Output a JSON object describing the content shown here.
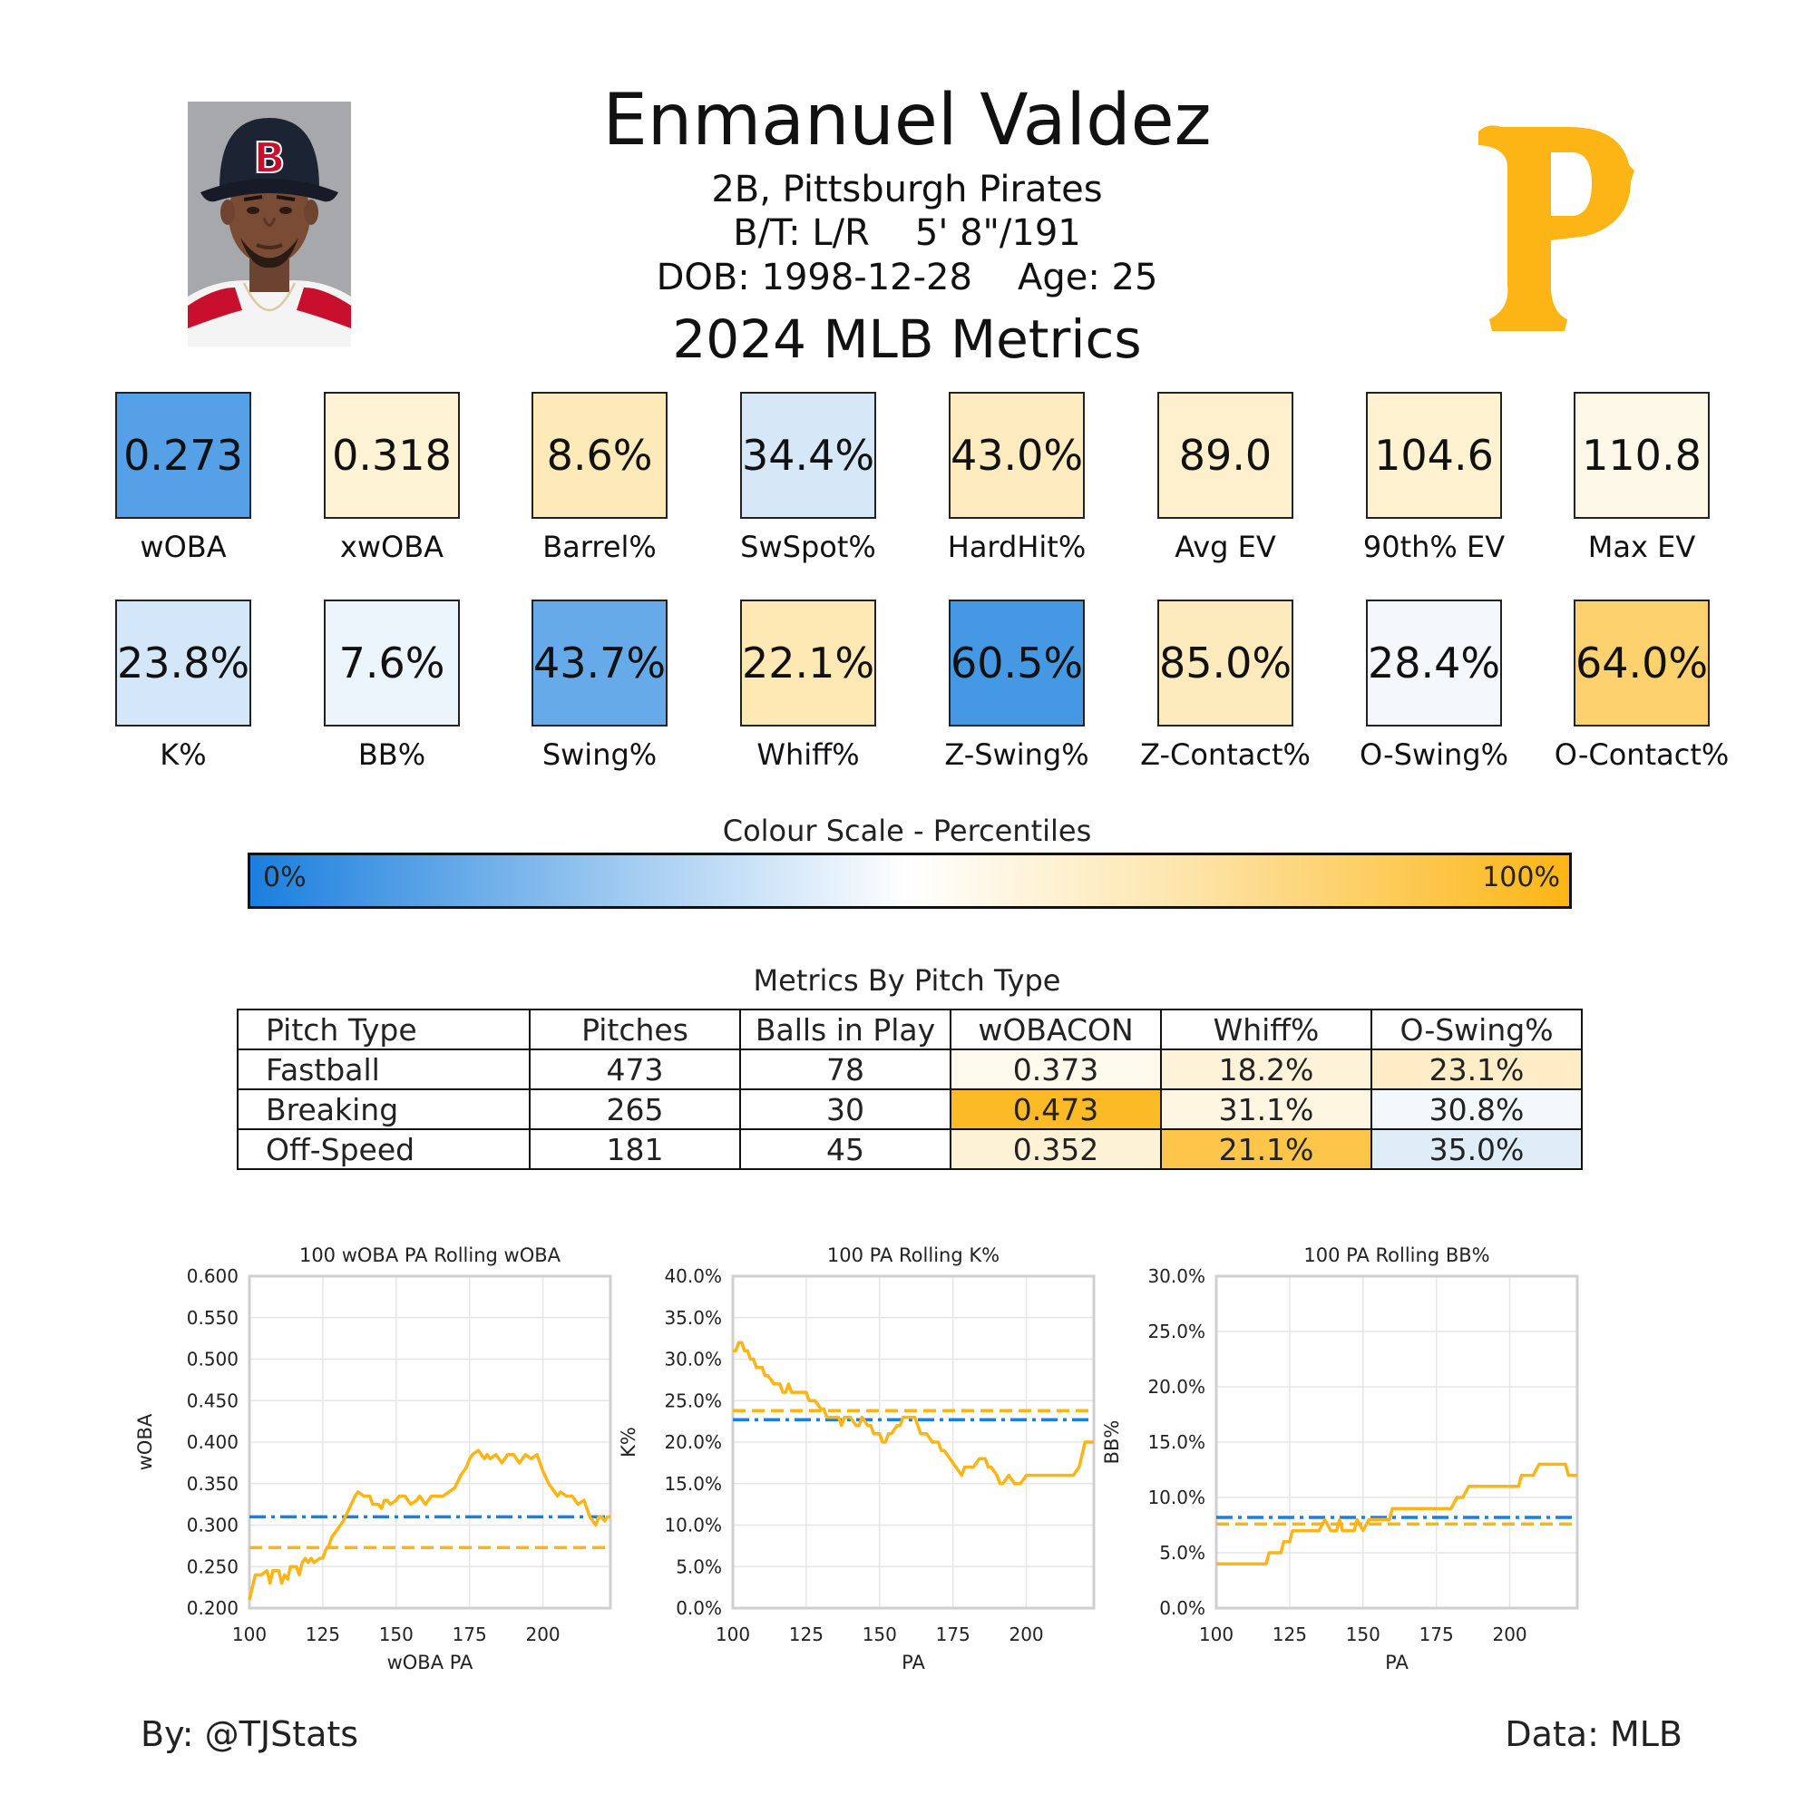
{
  "header": {
    "player_name": "Enmanuel Valdez",
    "position_team": "2B, Pittsburgh Pirates",
    "bats_throws": "B/T: L/R",
    "height_weight": "5' 8\"/191",
    "dob": "DOB: 1998-12-28",
    "age": "Age: 25",
    "season_title": "2024 MLB Metrics",
    "logo_letter": "P",
    "cap_letter": "B"
  },
  "metrics_row1": [
    {
      "label": "wOBA",
      "value": "0.273",
      "color": "#55a0e6"
    },
    {
      "label": "xwOBA",
      "value": "0.318",
      "color": "#fef3d4"
    },
    {
      "label": "Barrel%",
      "value": "8.6%",
      "color": "#fee9b8"
    },
    {
      "label": "SwSpot%",
      "value": "34.4%",
      "color": "#d6e8f8"
    },
    {
      "label": "HardHit%",
      "value": "43.0%",
      "color": "#feecc0"
    },
    {
      "label": "Avg EV",
      "value": "89.0",
      "color": "#fef0cc"
    },
    {
      "label": "90th% EV",
      "value": "104.6",
      "color": "#fef2d0"
    },
    {
      "label": "Max EV",
      "value": "110.8",
      "color": "#fef8e8"
    }
  ],
  "metrics_row2": [
    {
      "label": "K%",
      "value": "23.8%",
      "color": "#d4e7f8"
    },
    {
      "label": "BB%",
      "value": "7.6%",
      "color": "#ecf4fc"
    },
    {
      "label": "Swing%",
      "value": "43.7%",
      "color": "#66aaea"
    },
    {
      "label": "Whiff%",
      "value": "22.1%",
      "color": "#fee8b3"
    },
    {
      "label": "Z-Swing%",
      "value": "60.5%",
      "color": "#4598e3"
    },
    {
      "label": "Z-Contact%",
      "value": "85.0%",
      "color": "#feebbd"
    },
    {
      "label": "O-Swing%",
      "value": "28.4%",
      "color": "#f4f8fd"
    },
    {
      "label": "O-Contact%",
      "value": "64.0%",
      "color": "#fdd16e"
    }
  ],
  "colour_scale": {
    "title": "Colour Scale - Percentiles",
    "min_label": "0%",
    "max_label": "100%"
  },
  "pitch_table": {
    "title": "Metrics By Pitch Type",
    "headers": [
      "Pitch Type",
      "Pitches",
      "Balls in Play",
      "wOBACON",
      "Whiff%",
      "O-Swing%"
    ],
    "rows": [
      {
        "pitch_type": "Fastball",
        "pitches": "473",
        "bip": "78",
        "wobacon": "0.373",
        "whiff": "18.2%",
        "oswing": "23.1%",
        "wobacon_color": "#fff9ec",
        "whiff_color": "#fef3d8",
        "oswing_color": "#feedc6"
      },
      {
        "pitch_type": "Breaking",
        "pitches": "265",
        "bip": "30",
        "wobacon": "0.473",
        "whiff": "31.1%",
        "oswing": "30.8%",
        "wobacon_color": "#fdba27",
        "whiff_color": "#fef6e0",
        "oswing_color": "#f3f8fd"
      },
      {
        "pitch_type": "Off-Speed",
        "pitches": "181",
        "bip": "45",
        "wobacon": "0.352",
        "whiff": "21.1%",
        "oswing": "35.0%",
        "wobacon_color": "#fef2d6",
        "whiff_color": "#fdc549",
        "oswing_color": "#dfedf9"
      }
    ]
  },
  "chart_data": [
    {
      "type": "line",
      "title": "100 wOBA PA Rolling wOBA",
      "xlabel": "wOBA PA",
      "ylabel": "wOBA",
      "xlim": [
        100,
        223
      ],
      "ylim": [
        0.2,
        0.6
      ],
      "xticks": [
        "100",
        "125",
        "150",
        "175",
        "200"
      ],
      "yticks": [
        "0.200",
        "0.250",
        "0.300",
        "0.350",
        "0.400",
        "0.450",
        "0.500",
        "0.550",
        "0.600"
      ],
      "grid": true,
      "league_avg": 0.31,
      "player_avg": 0.273,
      "series": [
        {
          "color": "#fdb515",
          "x": [
            100,
            101,
            102,
            104,
            106,
            107,
            108,
            110,
            111,
            112,
            113,
            114,
            116,
            117,
            118,
            119,
            120,
            121,
            122,
            124,
            125,
            126,
            127,
            128,
            130,
            132,
            134,
            136,
            137,
            139,
            141,
            142,
            144,
            145,
            146,
            147,
            148,
            150,
            151,
            153,
            155,
            157,
            158,
            160,
            162,
            164,
            166,
            168,
            170,
            172,
            174,
            175,
            176,
            178,
            180,
            181,
            182,
            184,
            186,
            188,
            190,
            192,
            194,
            196,
            198,
            199,
            200,
            202,
            204,
            205,
            206,
            208,
            210,
            212,
            214,
            216,
            217,
            218,
            219,
            220,
            221,
            222,
            223
          ],
          "y": [
            0.21,
            0.225,
            0.24,
            0.24,
            0.245,
            0.23,
            0.245,
            0.245,
            0.23,
            0.24,
            0.235,
            0.25,
            0.25,
            0.24,
            0.255,
            0.26,
            0.255,
            0.26,
            0.255,
            0.26,
            0.26,
            0.27,
            0.275,
            0.285,
            0.295,
            0.305,
            0.32,
            0.335,
            0.34,
            0.335,
            0.335,
            0.325,
            0.325,
            0.32,
            0.33,
            0.33,
            0.325,
            0.33,
            0.335,
            0.335,
            0.325,
            0.33,
            0.335,
            0.325,
            0.335,
            0.335,
            0.335,
            0.34,
            0.345,
            0.36,
            0.37,
            0.38,
            0.385,
            0.39,
            0.38,
            0.385,
            0.38,
            0.385,
            0.375,
            0.385,
            0.385,
            0.375,
            0.385,
            0.38,
            0.385,
            0.375,
            0.365,
            0.35,
            0.34,
            0.335,
            0.34,
            0.335,
            0.335,
            0.325,
            0.33,
            0.31,
            0.305,
            0.3,
            0.31,
            0.31,
            0.305,
            0.31,
            0.31
          ]
        }
      ]
    },
    {
      "type": "line",
      "title": "100 PA Rolling K%",
      "xlabel": "PA",
      "ylabel": "K%",
      "xlim": [
        100,
        223
      ],
      "ylim": [
        0,
        40
      ],
      "xticks": [
        "100",
        "125",
        "150",
        "175",
        "200"
      ],
      "yticks": [
        "0.0%",
        "5.0%",
        "10.0%",
        "15.0%",
        "20.0%",
        "25.0%",
        "30.0%",
        "35.0%",
        "40.0%"
      ],
      "grid": true,
      "league_avg": 22.7,
      "player_avg": 23.8,
      "series": [
        {
          "color": "#fdb515",
          "x": [
            100,
            101,
            102,
            103,
            104,
            105,
            106,
            107,
            108,
            110,
            111,
            112,
            114,
            116,
            117,
            118,
            119,
            120,
            122,
            124,
            125,
            126,
            128,
            130,
            131,
            132,
            134,
            136,
            137,
            138,
            140,
            142,
            143,
            144,
            146,
            147,
            148,
            150,
            151,
            152,
            153,
            154,
            156,
            157,
            158,
            160,
            162,
            163,
            164,
            166,
            168,
            170,
            171,
            172,
            174,
            176,
            178,
            179,
            180,
            182,
            184,
            186,
            187,
            188,
            190,
            191,
            192,
            194,
            196,
            197,
            198,
            200,
            202,
            204,
            206,
            208,
            210,
            212,
            214,
            216,
            218,
            220,
            223
          ],
          "y": [
            31,
            31,
            32,
            32,
            31,
            31,
            30,
            30,
            29,
            29,
            28,
            28,
            27,
            27,
            26,
            26,
            27,
            26,
            26,
            26,
            26,
            25,
            25,
            24,
            24,
            23,
            23,
            23,
            22,
            23,
            23,
            22,
            22,
            23,
            22,
            22,
            21,
            21,
            20,
            20,
            21,
            21,
            22,
            22,
            23,
            23,
            23,
            22,
            21,
            21,
            20,
            20,
            19,
            19,
            18,
            17,
            16,
            17,
            17,
            17,
            18,
            18,
            17,
            17,
            16,
            15,
            15,
            16,
            15,
            15,
            15,
            16,
            16,
            16,
            16,
            16,
            16,
            16,
            16,
            16,
            17,
            20,
            20
          ]
        }
      ]
    },
    {
      "type": "line",
      "title": "100 PA Rolling BB%",
      "xlabel": "PA",
      "ylabel": "BB%",
      "xlim": [
        100,
        223
      ],
      "ylim": [
        0,
        30
      ],
      "xticks": [
        "100",
        "125",
        "150",
        "175",
        "200"
      ],
      "yticks": [
        "0.0%",
        "5.0%",
        "10.0%",
        "15.0%",
        "20.0%",
        "25.0%",
        "30.0%"
      ],
      "grid": true,
      "league_avg": 8.2,
      "player_avg": 7.6,
      "series": [
        {
          "color": "#fdb515",
          "x": [
            100,
            117,
            118,
            122,
            123,
            125,
            126,
            128,
            130,
            132,
            133,
            135,
            137,
            139,
            141,
            142,
            143,
            145,
            147,
            148,
            150,
            152,
            153,
            155,
            157,
            158,
            159,
            160,
            162,
            164,
            166,
            168,
            170,
            172,
            174,
            176,
            178,
            180,
            182,
            183,
            184,
            186,
            188,
            190,
            192,
            194,
            196,
            198,
            200,
            202,
            203,
            204,
            206,
            208,
            210,
            212,
            214,
            216,
            218,
            219,
            220,
            223
          ],
          "y": [
            4,
            4,
            5,
            5,
            6,
            6,
            7,
            7,
            7,
            7,
            7,
            7,
            8,
            7,
            7,
            8,
            7,
            7,
            7,
            8,
            7,
            8,
            8,
            8,
            8,
            8,
            8,
            9,
            9,
            9,
            9,
            9,
            9,
            9,
            9,
            9,
            9,
            9,
            10,
            10,
            10,
            11,
            11,
            11,
            11,
            11,
            11,
            11,
            11,
            11,
            11,
            12,
            12,
            12,
            13,
            13,
            13,
            13,
            13,
            13,
            12,
            12
          ]
        }
      ]
    }
  ],
  "footer": {
    "by": "By: @TJStats",
    "data": "Data: MLB"
  }
}
